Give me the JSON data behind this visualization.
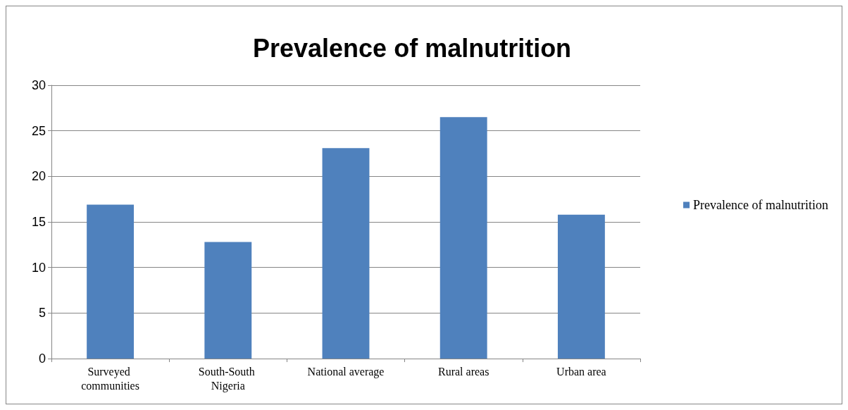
{
  "chart_data": {
    "type": "bar",
    "title": "Prevalence of malnutrition",
    "categories": [
      "Surveyed communities",
      "South-South Nigeria",
      "National average",
      "Rural areas",
      "Urban area"
    ],
    "series": [
      {
        "name": "Prevalence of malnutrition",
        "color": "#4f81bd",
        "values": [
          16.9,
          12.8,
          23.1,
          26.5,
          15.8
        ]
      }
    ],
    "ylim": [
      0,
      30
    ],
    "yticks": [
      0,
      5,
      10,
      15,
      20,
      25,
      30
    ],
    "grid": "y",
    "legend": "right"
  }
}
